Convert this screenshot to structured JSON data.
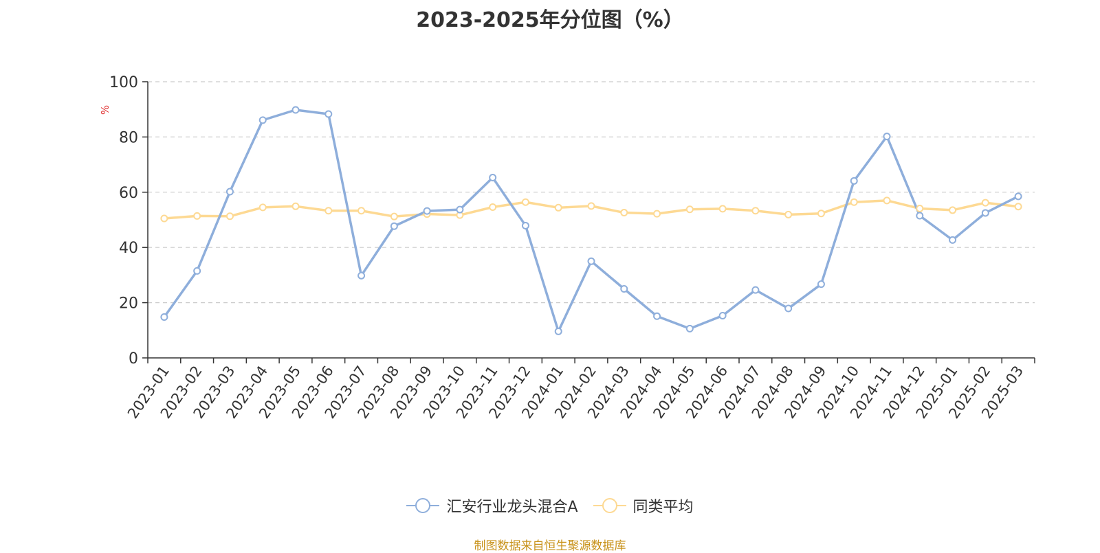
{
  "chart_data": {
    "type": "line",
    "title": "2023-2025年分位图（%）",
    "ylabel": "%",
    "xlabel": "",
    "ylim": [
      0,
      100
    ],
    "yticks": [
      0,
      20,
      40,
      60,
      80,
      100
    ],
    "grid": true,
    "legend_position": "bottom-center",
    "categories": [
      "2023-01",
      "2023-02",
      "2023-03",
      "2023-04",
      "2023-05",
      "2023-06",
      "2023-07",
      "2023-08",
      "2023-09",
      "2023-10",
      "2023-11",
      "2023-12",
      "2024-01",
      "2024-02",
      "2024-03",
      "2024-04",
      "2024-05",
      "2024-06",
      "2024-07",
      "2024-08",
      "2024-09",
      "2024-10",
      "2024-11",
      "2024-12",
      "2025-01",
      "2025-02",
      "2025-03"
    ],
    "series": [
      {
        "name": "汇安行业龙头混合A",
        "color": "#8eaedb",
        "values": [
          14.8,
          31.5,
          60.2,
          86.1,
          89.8,
          88.3,
          29.8,
          47.7,
          53.2,
          53.7,
          65.3,
          47.9,
          9.6,
          35.0,
          25.0,
          15.1,
          10.6,
          15.3,
          24.6,
          17.9,
          26.7,
          64.1,
          80.2,
          51.5,
          42.7,
          52.5,
          58.5
        ]
      },
      {
        "name": "同类平均",
        "color": "#fdd993",
        "values": [
          50.5,
          51.4,
          51.3,
          54.5,
          54.9,
          53.3,
          53.3,
          51.2,
          52.1,
          51.7,
          54.6,
          56.4,
          54.4,
          55.0,
          52.6,
          52.2,
          53.8,
          54.0,
          53.3,
          51.9,
          52.3,
          56.4,
          57.0,
          54.1,
          53.5,
          56.2,
          54.8
        ]
      }
    ]
  },
  "source": "制图数据来自恒生聚源数据库"
}
